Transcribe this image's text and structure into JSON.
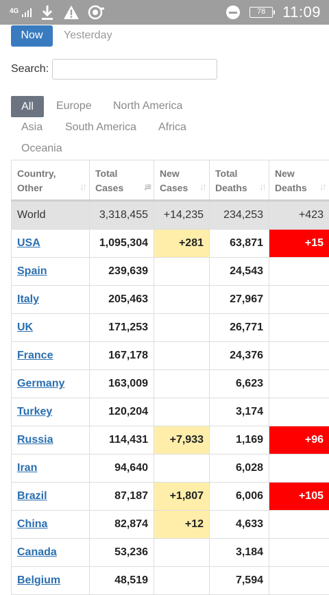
{
  "status_bar": {
    "network": "4G",
    "battery": "78",
    "time": "11:09"
  },
  "filters": {
    "now_label": "Now",
    "yesterday_label": "Yesterday"
  },
  "search": {
    "label": "Search:",
    "value": "",
    "placeholder": ""
  },
  "regions": [
    "All",
    "Europe",
    "North America",
    "Asia",
    "South America",
    "Africa",
    "Oceania"
  ],
  "table": {
    "headers": [
      [
        "Country,",
        "Other"
      ],
      [
        "Total",
        "Cases"
      ],
      [
        "New",
        "Cases"
      ],
      [
        "Total",
        "Deaths"
      ],
      [
        "New",
        "Deaths"
      ]
    ],
    "world": [
      "World",
      "3,318,455",
      "+14,235",
      "234,253",
      "+423"
    ],
    "rows": [
      [
        "USA",
        "1,095,304",
        "+281",
        "63,871",
        "+15"
      ],
      [
        "Spain",
        "239,639",
        "",
        "24,543",
        ""
      ],
      [
        "Italy",
        "205,463",
        "",
        "27,967",
        ""
      ],
      [
        "UK",
        "171,253",
        "",
        "26,771",
        ""
      ],
      [
        "France",
        "167,178",
        "",
        "24,376",
        ""
      ],
      [
        "Germany",
        "163,009",
        "",
        "6,623",
        ""
      ],
      [
        "Turkey",
        "120,204",
        "",
        "3,174",
        ""
      ],
      [
        "Russia",
        "114,431",
        "+7,933",
        "1,169",
        "+96"
      ],
      [
        "Iran",
        "94,640",
        "",
        "6,028",
        ""
      ],
      [
        "Brazil",
        "87,187",
        "+1,807",
        "6,006",
        "+105"
      ],
      [
        "China",
        "82,874",
        "+12",
        "4,633",
        ""
      ],
      [
        "Canada",
        "53,236",
        "",
        "3,184",
        ""
      ],
      [
        "Belgium",
        "48,519",
        "",
        "7,594",
        ""
      ]
    ]
  },
  "colors": {
    "accent": "#3a7bbf",
    "new_cases_bg": "#ffeeaa",
    "new_deaths_bg": "#ff0000",
    "world_bg": "#e2e2e2"
  }
}
